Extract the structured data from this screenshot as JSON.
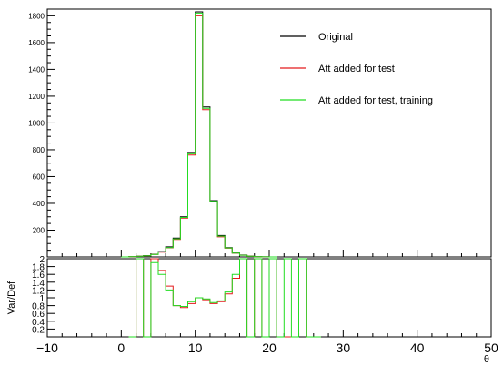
{
  "chart_data": [
    {
      "type": "line",
      "panel": "main",
      "title": "",
      "xlabel": "",
      "ylabel": "",
      "xlim": [
        -10,
        50
      ],
      "ylim": [
        0,
        1850
      ],
      "yticks": [
        "200",
        "400",
        "600",
        "800",
        "1000",
        "1200",
        "1400",
        "1600",
        "1800"
      ],
      "legend": "top-right",
      "step": true,
      "x": [
        0,
        1,
        2,
        3,
        4,
        5,
        6,
        7,
        8,
        9,
        10,
        11,
        12,
        13,
        14,
        15,
        16,
        17,
        18,
        19,
        20
      ],
      "series": [
        {
          "name": "Original",
          "color": "#000000",
          "values": [
            0,
            2,
            5,
            10,
            20,
            40,
            75,
            140,
            300,
            780,
            1830,
            1120,
            420,
            160,
            70,
            30,
            14,
            6,
            2,
            1,
            0
          ]
        },
        {
          "name": "Att added for test",
          "color": "#e41a1c",
          "values": [
            0,
            2,
            5,
            9,
            18,
            36,
            68,
            130,
            290,
            760,
            1800,
            1100,
            410,
            150,
            65,
            28,
            13,
            5,
            2,
            1,
            0
          ]
        },
        {
          "name": "Att added for test, training",
          "color": "#22dd22",
          "values": [
            0,
            2,
            5,
            9,
            19,
            37,
            70,
            135,
            295,
            770,
            1820,
            1110,
            415,
            155,
            67,
            29,
            13,
            5,
            2,
            1,
            0
          ]
        }
      ]
    },
    {
      "type": "line",
      "panel": "ratio",
      "title": "",
      "xlabel": "θ",
      "ylabel": "Var/Def",
      "xlim": [
        -10,
        50
      ],
      "ylim": [
        0,
        2
      ],
      "xticks": [
        "−10",
        "0",
        "10",
        "20",
        "30",
        "40",
        "50"
      ],
      "yticks": [
        "0.2",
        "0.4",
        "0.6",
        "0.8",
        "1",
        "1.2",
        "1.4",
        "1.6",
        "1.8",
        "2"
      ],
      "step": true,
      "x": [
        1,
        2,
        3,
        4,
        5,
        6,
        7,
        8,
        9,
        10,
        11,
        12,
        13,
        14,
        15,
        16,
        17,
        18,
        19,
        20,
        21,
        22,
        23,
        24,
        25,
        26
      ],
      "series": [
        {
          "name": "Att added for test",
          "color": "#e41a1c",
          "values": [
            0,
            2,
            0,
            2,
            1.7,
            1.3,
            0.8,
            0.75,
            0.85,
            1.0,
            0.95,
            0.85,
            0.9,
            1.1,
            1.5,
            2,
            0,
            2,
            0,
            2,
            0,
            0,
            0,
            2,
            0,
            0
          ]
        },
        {
          "name": "Att added for test, training",
          "color": "#22dd22",
          "values": [
            0,
            2,
            0,
            1.9,
            1.6,
            1.2,
            0.8,
            0.78,
            0.9,
            1.0,
            0.97,
            0.88,
            0.92,
            1.15,
            1.6,
            2,
            0,
            2,
            0,
            2,
            0,
            2,
            0,
            2,
            0,
            0
          ]
        }
      ]
    }
  ]
}
